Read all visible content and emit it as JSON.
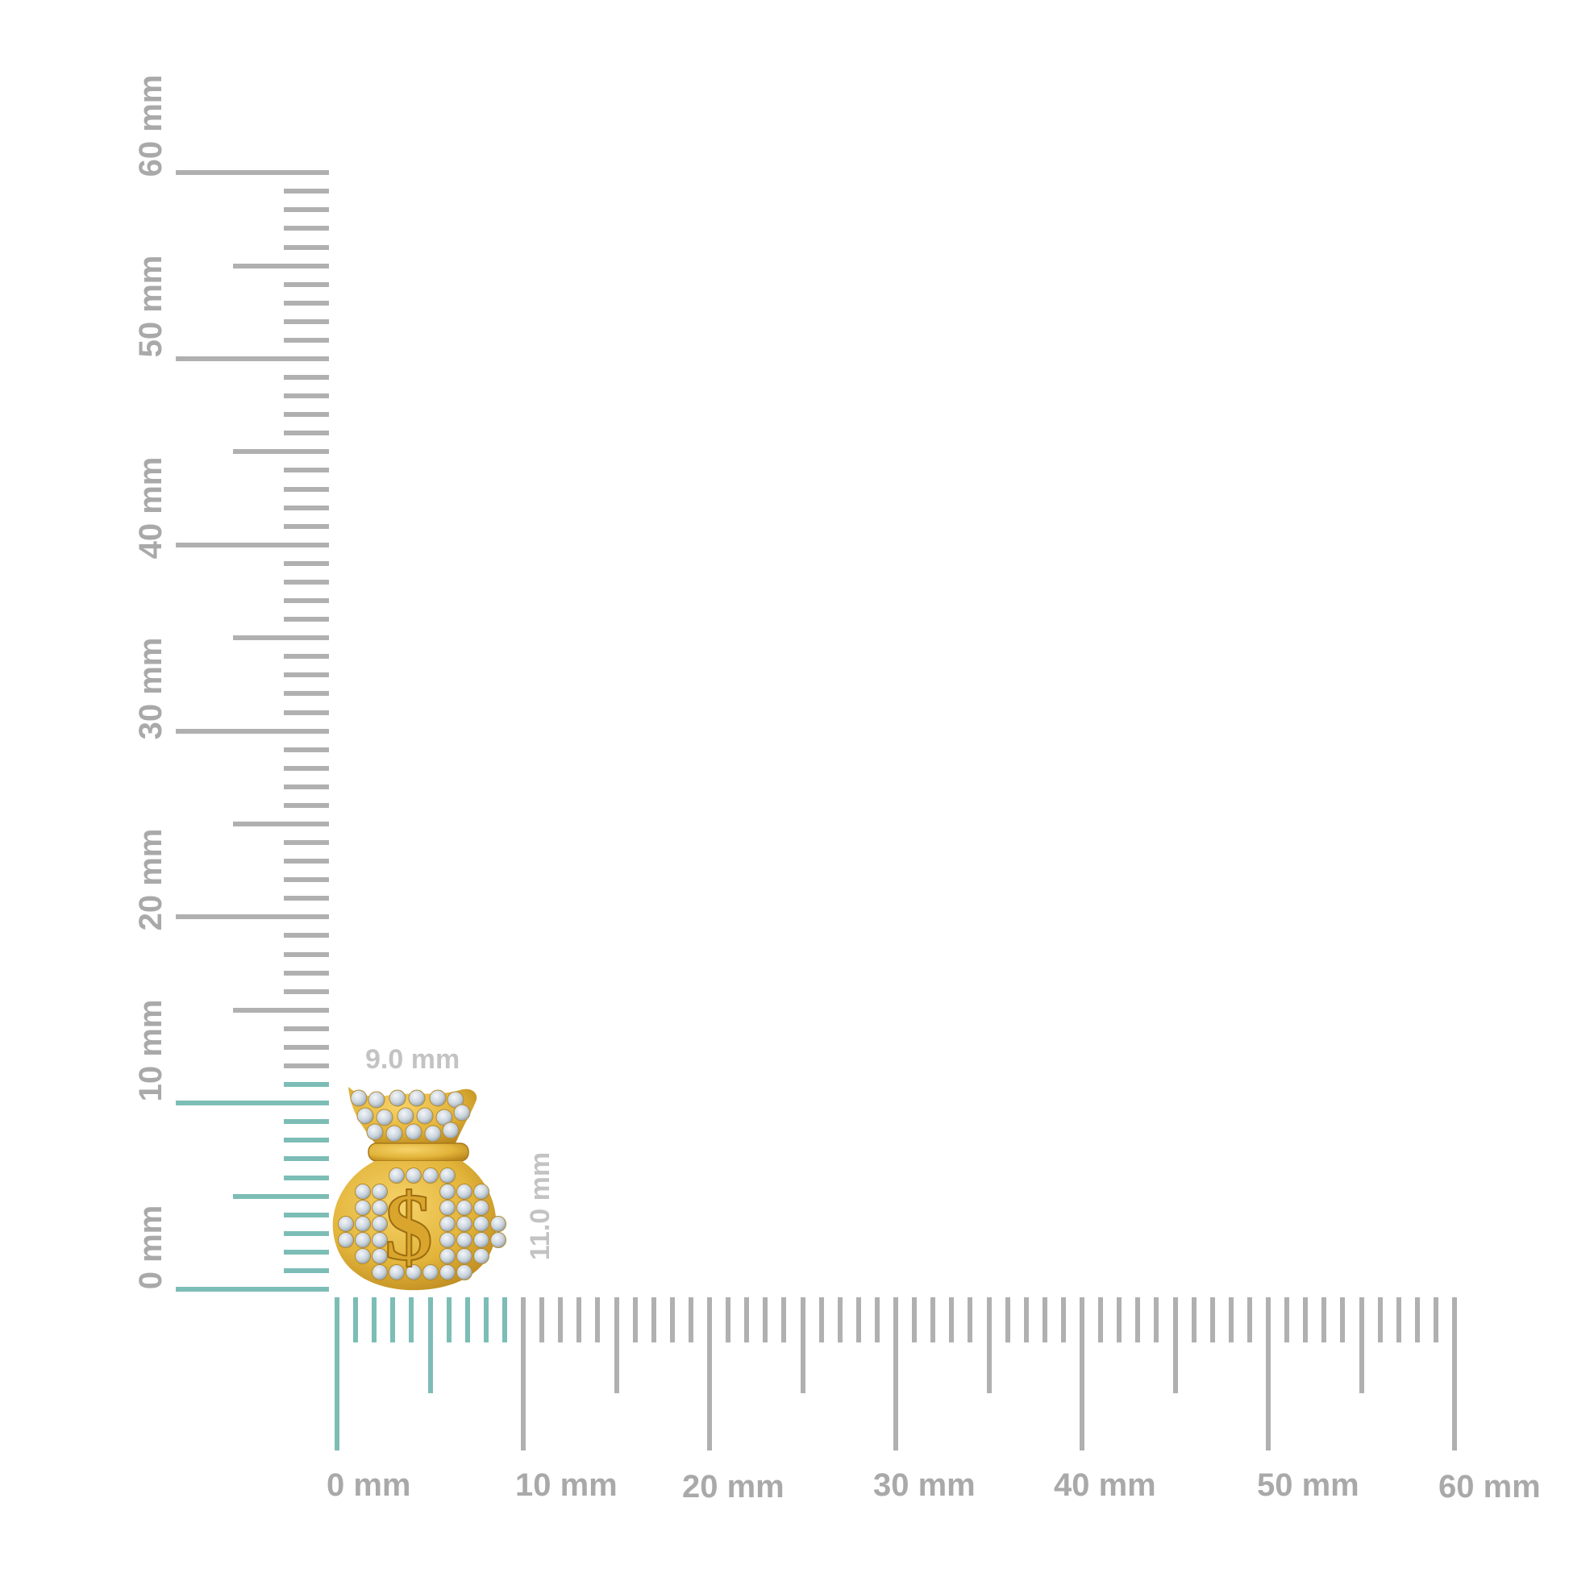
{
  "ruler": {
    "unit": "mm",
    "range_mm": [
      0,
      60
    ],
    "x_labels": [
      "0 mm",
      "10 mm",
      "20 mm",
      "30 mm",
      "40 mm",
      "50 mm",
      "60 mm"
    ],
    "y_labels": [
      "0 mm",
      "10 mm",
      "20 mm",
      "30 mm",
      "40 mm",
      "50 mm",
      "60 mm"
    ],
    "highlight_x_mm": 9,
    "highlight_y_mm": 11,
    "colors": {
      "tick": "#b0b0b0",
      "highlight": "#7cbdb6"
    }
  },
  "dimensions": {
    "width_label": "9.0 mm",
    "height_label": "11.0 mm"
  },
  "product": {
    "icon": "money-bag-dollar-pendant-icon",
    "colors": {
      "gold": "#e2b43a",
      "diamond": "#c9d3dc"
    }
  }
}
